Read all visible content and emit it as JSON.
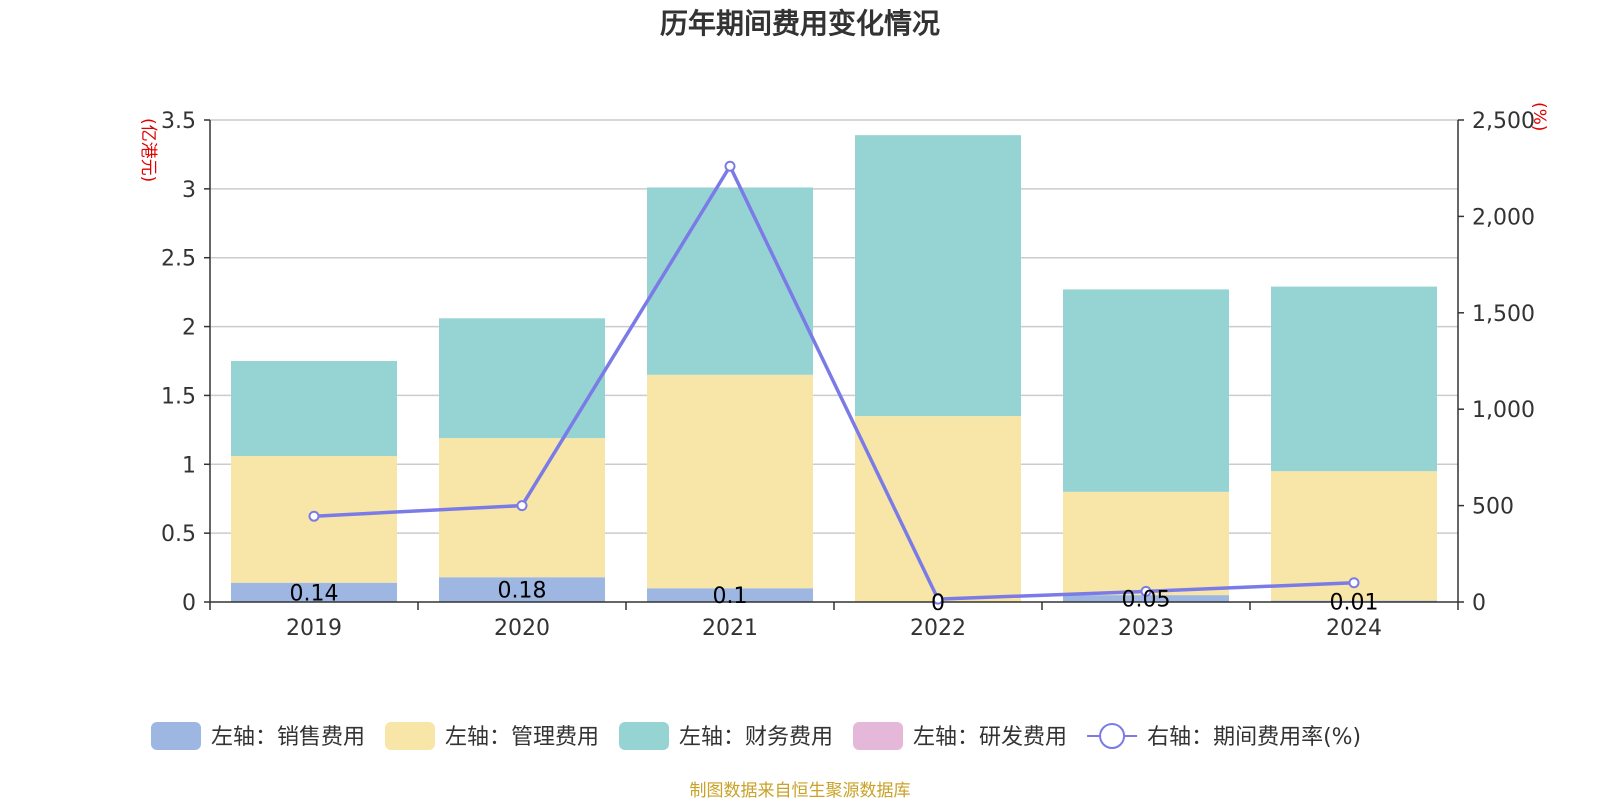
{
  "chart_data": {
    "type": "bar",
    "title": "历年期间费用变化情况",
    "categories": [
      "2019",
      "2020",
      "2021",
      "2022",
      "2023",
      "2024"
    ],
    "left_axis": {
      "unit_label": "(亿港元)",
      "ylim": [
        0,
        3.5
      ],
      "ticks": [
        "0",
        "0.5",
        "1",
        "1.5",
        "2",
        "2.5",
        "3",
        "3.5"
      ]
    },
    "right_axis": {
      "unit_label": "(%)",
      "ylim": [
        0,
        2500
      ],
      "ticks": [
        "0",
        "500",
        "1,000",
        "1,500",
        "2,000",
        "2,500"
      ]
    },
    "series": [
      {
        "name": "左轴：销售费用",
        "kind": "bar",
        "color": "#9db7e2",
        "values": [
          0.14,
          0.18,
          0.1,
          0,
          0.05,
          0.01
        ],
        "labels": [
          "0.14",
          "0.18",
          "0.1",
          "0",
          "0.05",
          "0.01"
        ]
      },
      {
        "name": "左轴：管理费用",
        "kind": "bar",
        "color": "#f7e6a7",
        "values": [
          0.92,
          1.01,
          1.55,
          1.35,
          0.75,
          0.94
        ]
      },
      {
        "name": "左轴：财务费用",
        "kind": "bar",
        "color": "#96d3d3",
        "values": [
          0.69,
          0.87,
          1.36,
          2.04,
          1.47,
          1.34
        ]
      },
      {
        "name": "左轴：研发费用",
        "kind": "bar",
        "color": "#e5b8d9",
        "values": [
          0,
          0,
          0,
          0,
          0,
          0
        ]
      },
      {
        "name": "右轴：期间费用率(%)",
        "kind": "line",
        "color": "#7b7be8",
        "values": [
          445,
          500,
          2260,
          15,
          55,
          100
        ]
      }
    ],
    "grid": true,
    "legend_position": "bottom"
  },
  "source_note": "制图数据来自恒生聚源数据库"
}
